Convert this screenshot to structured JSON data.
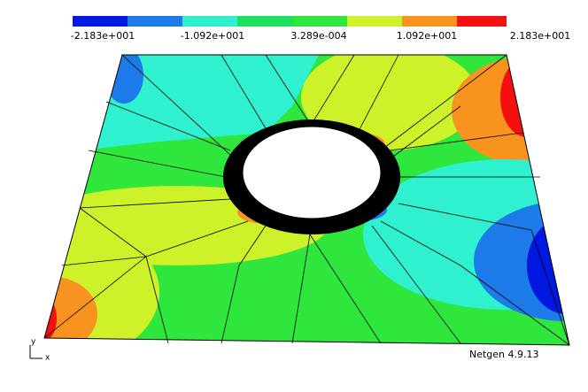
{
  "colorbar": {
    "labels": [
      "-2.183e+001",
      "-1.092e+001",
      "3.289e-004",
      "1.092e+001",
      "2.183e+001"
    ]
  },
  "axes": {
    "y": "y",
    "x": "x"
  },
  "version": "Netgen 4.9.13"
}
